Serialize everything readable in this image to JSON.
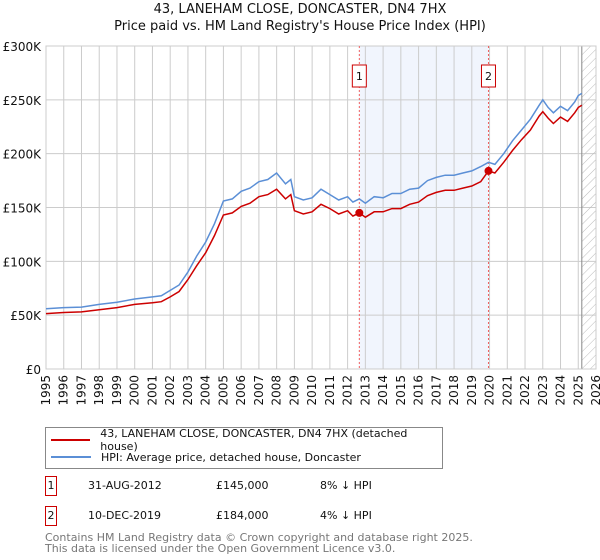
{
  "chart_data": {
    "type": "line",
    "title": "43, LANEHAM CLOSE, DONCASTER, DN4 7HX",
    "subtitle": "Price paid vs. HM Land Registry's House Price Index (HPI)",
    "xlim": [
      1995,
      2026
    ],
    "ylim": [
      0,
      300000
    ],
    "y_ticks": [
      0,
      50000,
      100000,
      150000,
      200000,
      250000,
      300000
    ],
    "y_tick_labels": [
      "£0",
      "£50K",
      "£100K",
      "£150K",
      "£200K",
      "£250K",
      "£300K"
    ],
    "x_ticks": [
      1995,
      1996,
      1997,
      1998,
      1999,
      2000,
      2001,
      2002,
      2003,
      2004,
      2005,
      2006,
      2007,
      2008,
      2009,
      2010,
      2011,
      2012,
      2013,
      2014,
      2015,
      2016,
      2017,
      2018,
      2019,
      2020,
      2021,
      2022,
      2023,
      2024,
      2025,
      2026
    ],
    "grid": true,
    "x": [
      1995,
      1996,
      1997,
      1998,
      1999,
      2000,
      2001,
      2001.5,
      2002,
      2002.5,
      2003,
      2003.5,
      2004,
      2004.5,
      2005,
      2005.5,
      2006,
      2006.5,
      2007,
      2007.5,
      2008,
      2008.5,
      2008.8,
      2009,
      2009.5,
      2010,
      2010.5,
      2011,
      2011.5,
      2012,
      2012.3,
      2012.66,
      2013,
      2013.5,
      2014,
      2014.5,
      2015,
      2015.5,
      2016,
      2016.5,
      2017,
      2017.5,
      2018,
      2018.5,
      2019,
      2019.5,
      2019.94,
      2020.3,
      2020.8,
      2021.3,
      2021.8,
      2022.3,
      2022.8,
      2023,
      2023.3,
      2023.6,
      2024,
      2024.4,
      2024.8,
      2025,
      2025.2
    ],
    "series": [
      {
        "name": "43, LANEHAM CLOSE, DONCASTER, DN4 7HX (detached house)",
        "color": "#cc0000",
        "values": [
          51500,
          52500,
          53000,
          55000,
          57000,
          60000,
          61500,
          62500,
          67000,
          72000,
          83000,
          96000,
          108000,
          124000,
          143000,
          145000,
          151000,
          154000,
          160000,
          162000,
          167000,
          158000,
          162000,
          147000,
          144000,
          146000,
          153000,
          149000,
          144000,
          147000,
          142000,
          145000,
          141000,
          146000,
          146000,
          149000,
          149000,
          153000,
          155000,
          161000,
          164000,
          166000,
          166000,
          168000,
          170000,
          174000,
          184000,
          182000,
          192000,
          203000,
          213000,
          222000,
          235000,
          239000,
          233000,
          228000,
          234000,
          230000,
          238000,
          243000,
          245000
        ]
      },
      {
        "name": "HPI: Average price, detached house, Doncaster",
        "color": "#5b8fd6",
        "values": [
          56000,
          57000,
          57500,
          60000,
          62000,
          65000,
          67000,
          68000,
          73000,
          78000,
          90000,
          105000,
          118000,
          135000,
          156000,
          158000,
          165000,
          168000,
          174000,
          176000,
          182000,
          172000,
          176000,
          160000,
          157000,
          159000,
          167000,
          162000,
          157000,
          160000,
          155000,
          158000,
          154000,
          160000,
          159000,
          163000,
          163000,
          167000,
          168000,
          175000,
          178000,
          180000,
          180000,
          182000,
          184000,
          188000,
          192000,
          190000,
          200000,
          212000,
          222000,
          232000,
          245000,
          250000,
          243000,
          238000,
          244000,
          240000,
          248000,
          254000,
          256000
        ]
      }
    ],
    "annotations": [
      {
        "label": "1",
        "x": 2012.66,
        "y": 145000
      },
      {
        "label": "2",
        "x": 2019.94,
        "y": 184000
      }
    ],
    "shaded_range": [
      2012.66,
      2019.94
    ],
    "hatched_from": 2025.2,
    "legend_placement": "below"
  },
  "legend": {
    "price_label": "43, LANEHAM CLOSE, DONCASTER, DN4 7HX (detached house)",
    "hpi_label": "HPI: Average price, detached house, Doncaster"
  },
  "sales": [
    {
      "num": "1",
      "date": "31-AUG-2012",
      "price": "£145,000",
      "diff": "8% ↓ HPI"
    },
    {
      "num": "2",
      "date": "10-DEC-2019",
      "price": "£184,000",
      "diff": "4% ↓ HPI"
    }
  ],
  "footer": {
    "line1": "Contains HM Land Registry data © Crown copyright and database right 2025.",
    "line2": "This data is licensed under the Open Government Licence v3.0."
  }
}
